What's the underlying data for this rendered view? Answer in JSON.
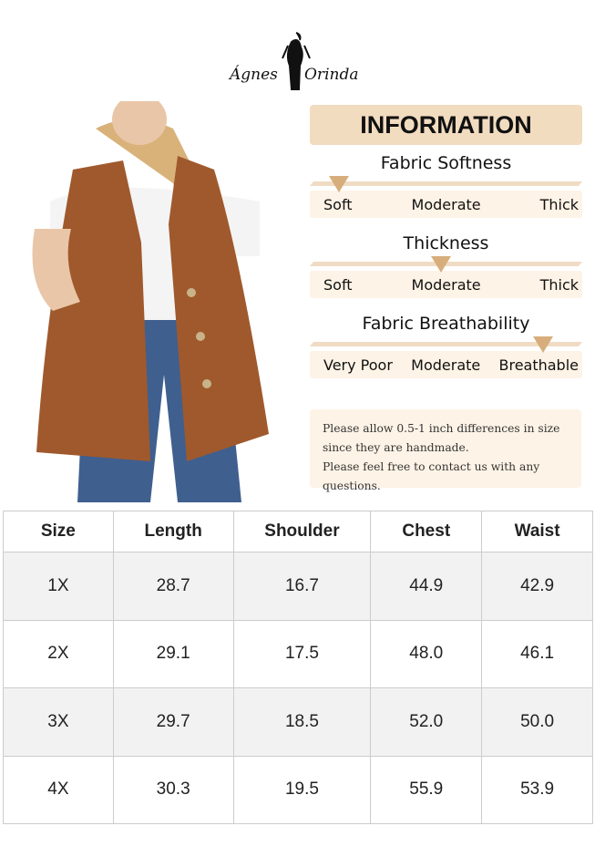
{
  "brand": {
    "name_left": "Ágnes",
    "name_right": "Orinda"
  },
  "info": {
    "title": "INFORMATION",
    "scales": [
      {
        "title": "Fabric Softness",
        "labels": [
          "Soft",
          "Moderate",
          "Thick"
        ],
        "level": 0
      },
      {
        "title": "Thickness",
        "labels": [
          "Soft",
          "Moderate",
          "Thick"
        ],
        "level": 0.5
      },
      {
        "title": "Fabric Breathability",
        "labels": [
          "Very Poor",
          "Moderate",
          "Breathable"
        ],
        "level": 1
      }
    ],
    "note": [
      "Please allow 0.5-1 inch differences in size",
      "since they are handmade.",
      "Please feel free to contact us with any questions."
    ]
  },
  "colors": {
    "banner": "#f2dcc0",
    "marker": "#d7ae7b",
    "panel": "#fdf3e6",
    "vest": "#a0592c",
    "jeans": "#3f5f8f"
  },
  "size_table": {
    "headers": [
      "Size",
      "Length",
      "Shoulder",
      "Chest",
      "Waist"
    ],
    "rows": [
      [
        "1X",
        "28.7",
        "16.7",
        "44.9",
        "42.9"
      ],
      [
        "2X",
        "29.1",
        "17.5",
        "48.0",
        "46.1"
      ],
      [
        "3X",
        "29.7",
        "18.5",
        "52.0",
        "50.0"
      ],
      [
        "4X",
        "30.3",
        "19.5",
        "55.9",
        "53.9"
      ]
    ]
  }
}
